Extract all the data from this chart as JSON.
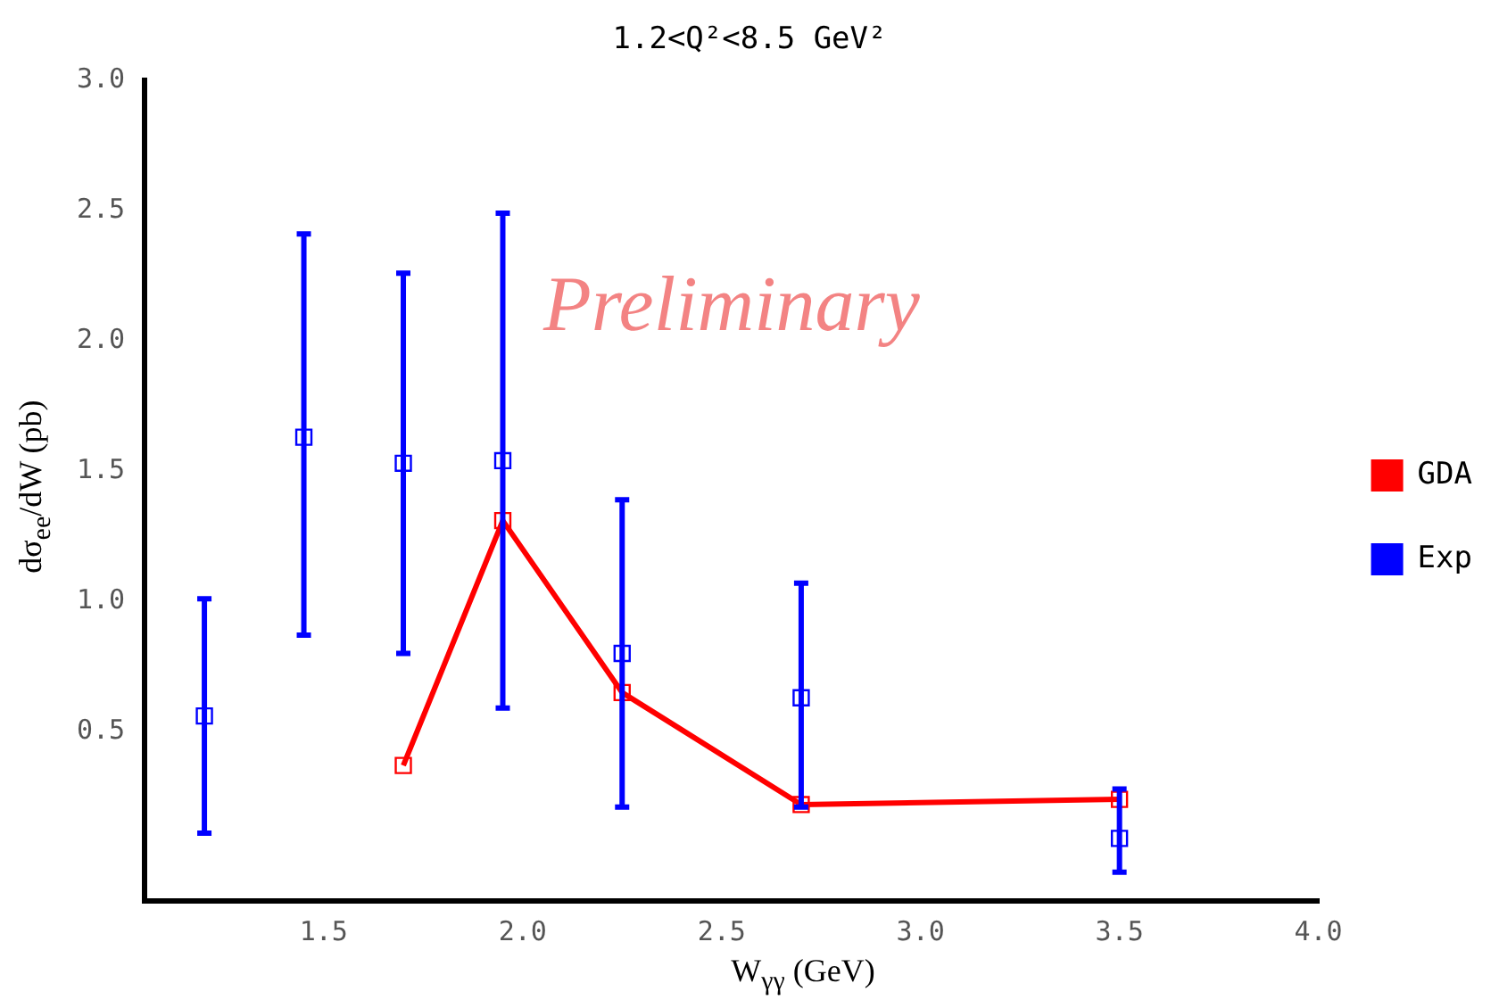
{
  "chart_data": {
    "type": "line",
    "title": "1.2<Q²<8.5 GeV²",
    "xlabel": "W$_{γγ}$ (GeV)",
    "ylabel": "dσ$_{ee}$/dW (pb)",
    "annotations": [
      "Preliminary"
    ],
    "xlim": [
      1.05,
      4.0
    ],
    "xticks": [
      {
        "value": 1.5,
        "label": "1.5"
      },
      {
        "value": 2,
        "label": "2.0"
      },
      {
        "value": 2.5,
        "label": "2.5"
      },
      {
        "value": 3,
        "label": "3.0"
      },
      {
        "value": 3.5,
        "label": "3.5"
      },
      {
        "value": 4,
        "label": "4.0"
      }
    ],
    "ylim": [
      -0.15,
      3.0
    ],
    "yticks": [
      {
        "value": 0.5,
        "label": "0.5"
      },
      {
        "value": 1,
        "label": "1.0"
      },
      {
        "value": 1.5,
        "label": "1.5"
      },
      {
        "value": 2,
        "label": "2.0"
      },
      {
        "value": 2.5,
        "label": "2.5"
      },
      {
        "value": 3,
        "label": "3.0"
      }
    ],
    "grid": false,
    "legend": "right",
    "marker": "square",
    "series": [
      {
        "name": "GDA",
        "type": "line",
        "color": "#ff0000",
        "x": [
          1.7,
          1.95,
          2.25,
          2.7,
          3.5
        ],
        "values": [
          0.37,
          1.31,
          0.65,
          0.22,
          0.24
        ]
      },
      {
        "name": "Exp",
        "type": "scatter",
        "color": "#0000ff",
        "x": [
          1.2,
          1.45,
          1.7,
          1.95,
          2.25,
          2.7,
          3.5
        ],
        "values": [
          0.56,
          1.63,
          1.53,
          1.54,
          0.8,
          0.63,
          0.09
        ],
        "errors": [
          [
            0.11,
            1.01
          ],
          [
            0.87,
            2.41
          ],
          [
            0.8,
            2.26
          ],
          [
            0.59,
            2.49
          ],
          [
            0.21,
            1.39
          ],
          [
            0.21,
            1.07
          ],
          [
            -0.04,
            0.28
          ]
        ]
      }
    ]
  }
}
